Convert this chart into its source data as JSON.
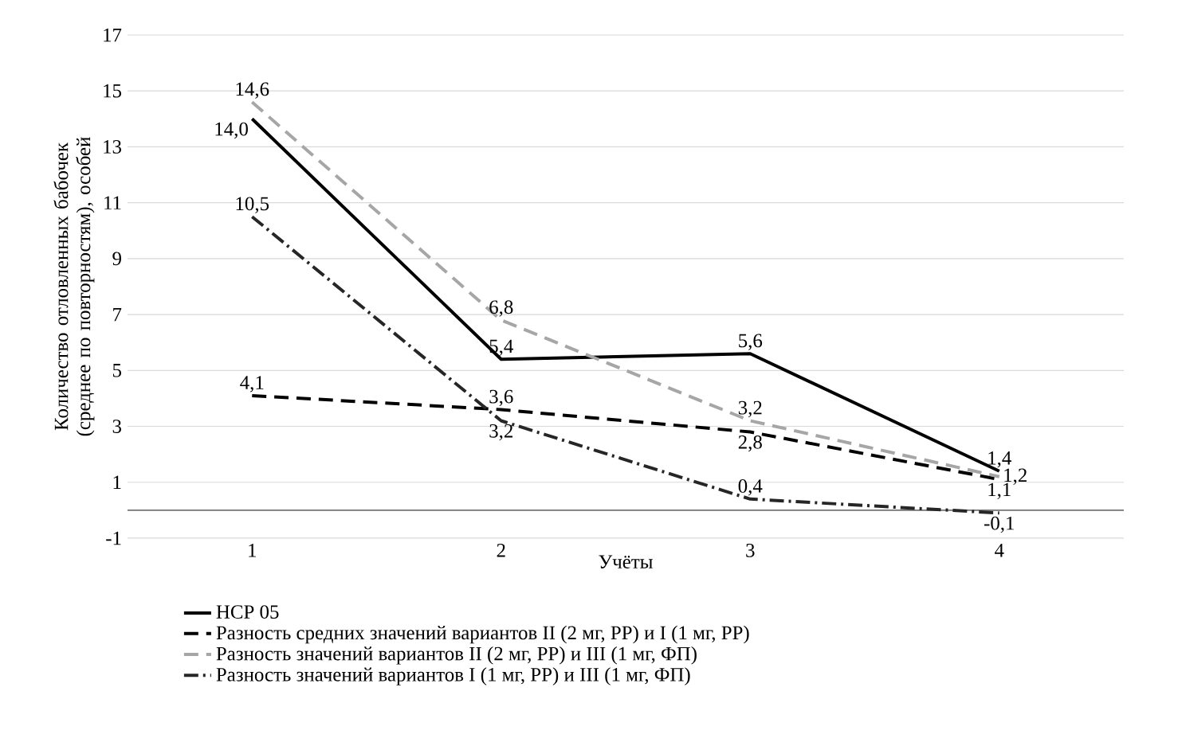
{
  "chart_data": {
    "type": "line",
    "xlabel": "Учёты",
    "ylabel": "Количество отловленных бабочек (среднее по повторностям), особей",
    "categories": [
      "1",
      "2",
      "3",
      "4"
    ],
    "ylim": [
      -1,
      17
    ],
    "yticks": [
      -1,
      1,
      3,
      5,
      7,
      9,
      11,
      13,
      15,
      17
    ],
    "grid": "y",
    "legend": "bottom",
    "series": [
      {
        "name": "НСР 05",
        "color": "#000000",
        "line_style": "solid",
        "values": [
          14.0,
          5.4,
          5.6,
          1.4
        ],
        "value_labels": [
          "14,0",
          "5,4",
          "5,6",
          "1,4"
        ]
      },
      {
        "name": "Разность средних значений вариантов II (2 мг, РР) и I (1 мг, РР)",
        "color": "#000000",
        "line_style": "dashed",
        "values": [
          4.1,
          3.6,
          2.8,
          1.1
        ],
        "value_labels": [
          "4,1",
          "3,6",
          "2,8",
          "1,1"
        ]
      },
      {
        "name": "Разность значений  вариантов II (2 мг, РР) и III (1 мг, ФП)",
        "color": "#a6a6a6",
        "line_style": "dashed",
        "values": [
          14.6,
          6.8,
          3.2,
          1.2
        ],
        "value_labels": [
          "14,6",
          "6,8",
          "3,2",
          "1,2"
        ]
      },
      {
        "name": "Разность значений вариантов I (1 мг, РР) и III (1 мг, ФП)",
        "color": "#262626",
        "line_style": "dashdot",
        "values": [
          10.5,
          3.2,
          0.4,
          -0.1
        ],
        "value_labels": [
          "10,5",
          "3,2",
          "0,4",
          "-0,1"
        ]
      }
    ]
  }
}
